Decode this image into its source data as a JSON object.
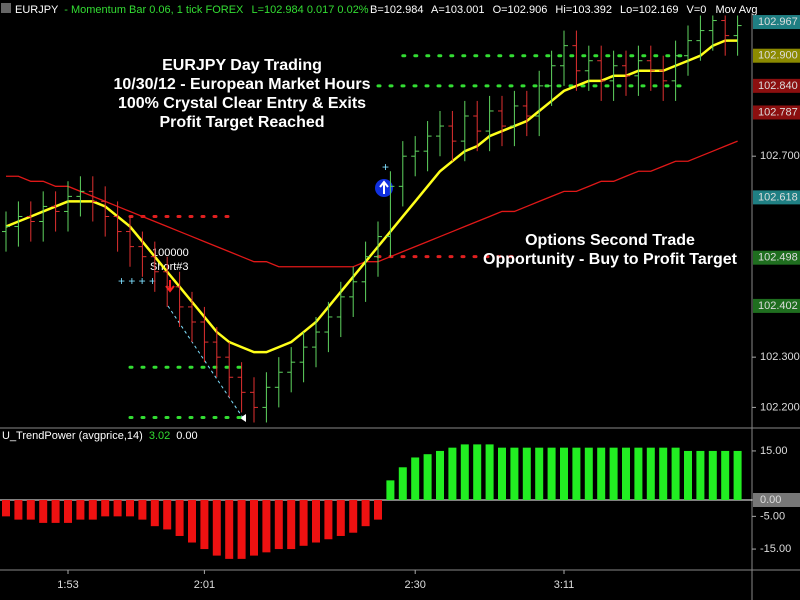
{
  "header": {
    "symbol": "EURJPY",
    "description": "- Momentum Bar 0.06, 1 tick  FOREX",
    "quote": "L=102.984  0.017  0.02%",
    "bid": "B=102.984",
    "ask": "A=103.001",
    "open": "O=102.906",
    "high": "Hi=103.392",
    "low": "Lo=102.169",
    "volume": "V=0",
    "study": "Mov Avg"
  },
  "chart_data": [
    {
      "type": "ohlc",
      "annotations": [
        {
          "lines": [
            "EURJPY Day Trading",
            "10/30/12 - European Market Hours",
            "100% Crystal Clear Entry & Exits",
            "Profit Target Reached"
          ]
        },
        {
          "lines": [
            "Options Second Trade",
            "Opportunity - Buy to Profit Target"
          ]
        }
      ],
      "order_label": [
        "100000",
        "Short#3"
      ],
      "ylim": [
        102.159,
        102.985
      ],
      "yticks": [
        {
          "value": 102.2,
          "label": "102.200"
        },
        {
          "value": 102.3,
          "label": "102.300"
        },
        {
          "value": 102.7,
          "label": "102.700"
        }
      ],
      "price_labels": [
        {
          "value": 102.967,
          "label": "102.967",
          "color": "#1f7f83"
        },
        {
          "value": 102.9,
          "label": "102.900",
          "color": "#8c8a00"
        },
        {
          "value": 102.84,
          "label": "102.840",
          "color": "#8b0f0f"
        },
        {
          "value": 102.787,
          "label": "102.787",
          "color": "#8b0f0f"
        },
        {
          "value": 102.618,
          "label": "102.618",
          "color": "#1f7f83"
        },
        {
          "value": 102.498,
          "label": "102.498",
          "color": "#1f6e1f"
        },
        {
          "value": 102.402,
          "label": "102.402",
          "color": "#1f6e1f"
        }
      ],
      "up_color": "#5fd35f",
      "down_color": "#e03030",
      "open": [
        102.55,
        102.56,
        102.58,
        102.57,
        102.6,
        102.59,
        102.62,
        102.63,
        102.61,
        102.58,
        102.55,
        102.52,
        102.5,
        102.47,
        102.44,
        102.4,
        102.37,
        102.33,
        102.3,
        102.26,
        102.23,
        102.2,
        102.24,
        102.27,
        102.29,
        102.32,
        102.35,
        102.38,
        102.42,
        102.45,
        102.5,
        102.54,
        102.64,
        102.7,
        102.71,
        102.74,
        102.76,
        102.73,
        102.78,
        102.75,
        102.79,
        102.76,
        102.8,
        102.78,
        102.84,
        102.88,
        102.92,
        102.87,
        102.89,
        102.85,
        102.88,
        102.86,
        102.89,
        102.87,
        102.85,
        102.9,
        102.93,
        102.95,
        102.97,
        102.94
      ],
      "high": [
        102.59,
        102.61,
        102.61,
        102.63,
        102.63,
        102.65,
        102.66,
        102.66,
        102.64,
        102.61,
        102.58,
        102.55,
        102.53,
        102.5,
        102.47,
        102.43,
        102.4,
        102.36,
        102.33,
        102.29,
        102.26,
        102.27,
        102.3,
        102.32,
        102.35,
        102.38,
        102.41,
        102.45,
        102.48,
        102.53,
        102.57,
        102.67,
        102.73,
        102.74,
        102.77,
        102.79,
        102.79,
        102.81,
        102.81,
        102.82,
        102.82,
        102.83,
        102.83,
        102.87,
        102.91,
        102.95,
        102.95,
        102.92,
        102.92,
        102.91,
        102.91,
        102.92,
        102.92,
        102.9,
        102.93,
        102.96,
        102.98,
        102.98,
        102.98,
        102.98
      ],
      "low": [
        102.51,
        102.52,
        102.53,
        102.53,
        102.55,
        102.55,
        102.58,
        102.57,
        102.54,
        102.51,
        102.48,
        102.46,
        102.43,
        102.4,
        102.36,
        102.33,
        102.29,
        102.26,
        102.22,
        102.19,
        102.17,
        102.17,
        102.2,
        102.23,
        102.25,
        102.28,
        102.31,
        102.34,
        102.38,
        102.41,
        102.46,
        102.5,
        102.6,
        102.66,
        102.67,
        102.7,
        102.69,
        102.69,
        102.71,
        102.71,
        102.72,
        102.72,
        102.74,
        102.74,
        102.8,
        102.84,
        102.83,
        102.83,
        102.81,
        102.81,
        102.82,
        102.82,
        102.83,
        102.81,
        102.81,
        102.86,
        102.89,
        102.91,
        102.9,
        102.9
      ],
      "close": [
        102.56,
        102.58,
        102.57,
        102.6,
        102.59,
        102.62,
        102.63,
        102.61,
        102.58,
        102.55,
        102.52,
        102.5,
        102.47,
        102.44,
        102.4,
        102.37,
        102.33,
        102.3,
        102.26,
        102.23,
        102.2,
        102.24,
        102.27,
        102.29,
        102.32,
        102.35,
        102.38,
        102.42,
        102.45,
        102.5,
        102.54,
        102.64,
        102.7,
        102.71,
        102.74,
        102.76,
        102.73,
        102.78,
        102.75,
        102.79,
        102.76,
        102.8,
        102.78,
        102.84,
        102.88,
        102.92,
        102.87,
        102.89,
        102.85,
        102.88,
        102.86,
        102.89,
        102.87,
        102.85,
        102.9,
        102.93,
        102.95,
        102.97,
        102.94,
        102.96
      ],
      "overlays": [
        {
          "color": "#e01818",
          "values": [
            102.66,
            102.66,
            102.65,
            102.65,
            102.64,
            102.64,
            102.63,
            102.62,
            102.61,
            102.6,
            102.59,
            102.58,
            102.57,
            102.56,
            102.55,
            102.54,
            102.53,
            102.52,
            102.51,
            102.5,
            102.49,
            102.49,
            102.48,
            102.48,
            102.48,
            102.48,
            102.48,
            102.48,
            102.48,
            102.49,
            102.49,
            102.5,
            102.51,
            102.52,
            102.53,
            102.54,
            102.55,
            102.56,
            102.57,
            102.58,
            102.59,
            102.59,
            102.6,
            102.61,
            102.62,
            102.63,
            102.63,
            102.64,
            102.65,
            102.65,
            102.66,
            102.67,
            102.67,
            102.68,
            102.69,
            102.69,
            102.7,
            102.71,
            102.72,
            102.73
          ]
        },
        {
          "color": "#ffff1a",
          "values": [
            102.56,
            102.57,
            102.58,
            102.59,
            102.6,
            102.61,
            102.61,
            102.61,
            102.6,
            102.58,
            102.56,
            102.53,
            102.5,
            102.47,
            102.44,
            102.41,
            102.38,
            102.35,
            102.33,
            102.32,
            102.31,
            102.31,
            102.32,
            102.33,
            102.35,
            102.37,
            102.4,
            102.43,
            102.46,
            102.49,
            102.52,
            102.55,
            102.58,
            102.61,
            102.64,
            102.67,
            102.69,
            102.71,
            102.72,
            102.74,
            102.75,
            102.76,
            102.77,
            102.79,
            102.81,
            102.83,
            102.84,
            102.85,
            102.85,
            102.86,
            102.86,
            102.87,
            102.87,
            102.87,
            102.88,
            102.89,
            102.9,
            102.92,
            102.93,
            102.93
          ]
        }
      ],
      "levels": [
        {
          "value": 102.18,
          "color": "#33dd33",
          "start": 10,
          "end": 19
        },
        {
          "value": 102.28,
          "color": "#33dd33",
          "start": 10,
          "end": 19
        },
        {
          "value": 102.58,
          "color": "#e02020",
          "start": 10,
          "end": 18
        },
        {
          "value": 102.5,
          "color": "#e02020",
          "start": 30,
          "end": 41
        },
        {
          "value": 102.84,
          "color": "#33dd33",
          "start": 30,
          "end": 55
        },
        {
          "value": 102.9,
          "color": "#33dd33",
          "start": 32,
          "end": 55
        }
      ]
    },
    {
      "type": "bar",
      "title": "U_TrendPower (avgprice,14)",
      "reading": "3.02",
      "reading2": "0.00",
      "categories": [
        null,
        null,
        null,
        null,
        null,
        "1:53",
        null,
        null,
        null,
        null,
        null,
        null,
        null,
        null,
        null,
        null,
        "2:01",
        null,
        null,
        null,
        null,
        null,
        null,
        null,
        null,
        null,
        null,
        null,
        null,
        null,
        null,
        null,
        null,
        "2:30",
        null,
        null,
        null,
        null,
        null,
        null,
        null,
        null,
        null,
        null,
        null,
        "3:11",
        null,
        null,
        null,
        null,
        null,
        null,
        null,
        null,
        null,
        null,
        null,
        null,
        null,
        null
      ],
      "values": [
        -5,
        -6,
        -6,
        -7,
        -7,
        -7,
        -6,
        -6,
        -5,
        -5,
        -5,
        -6,
        -8,
        -9,
        -11,
        -13,
        -15,
        -17,
        -18,
        -18,
        -17,
        -16,
        -15,
        -15,
        -14,
        -13,
        -12,
        -11,
        -10,
        -8,
        -6,
        6,
        10,
        13,
        14,
        15,
        16,
        17,
        17,
        17,
        16,
        16,
        16,
        16,
        16,
        16,
        16,
        16,
        16,
        16,
        16,
        16,
        16,
        16,
        16,
        15,
        15,
        15,
        15,
        15
      ],
      "color_positive": "#22ee22",
      "color_negative": "#ee1111",
      "ylim": [
        -21.4,
        21.4
      ],
      "yticks": [
        {
          "value": 15,
          "label": "15.00"
        },
        {
          "value": 0,
          "label": "0.00"
        },
        {
          "value": -5,
          "label": "-5.00"
        },
        {
          "value": -15,
          "label": "-15.00"
        }
      ]
    }
  ]
}
